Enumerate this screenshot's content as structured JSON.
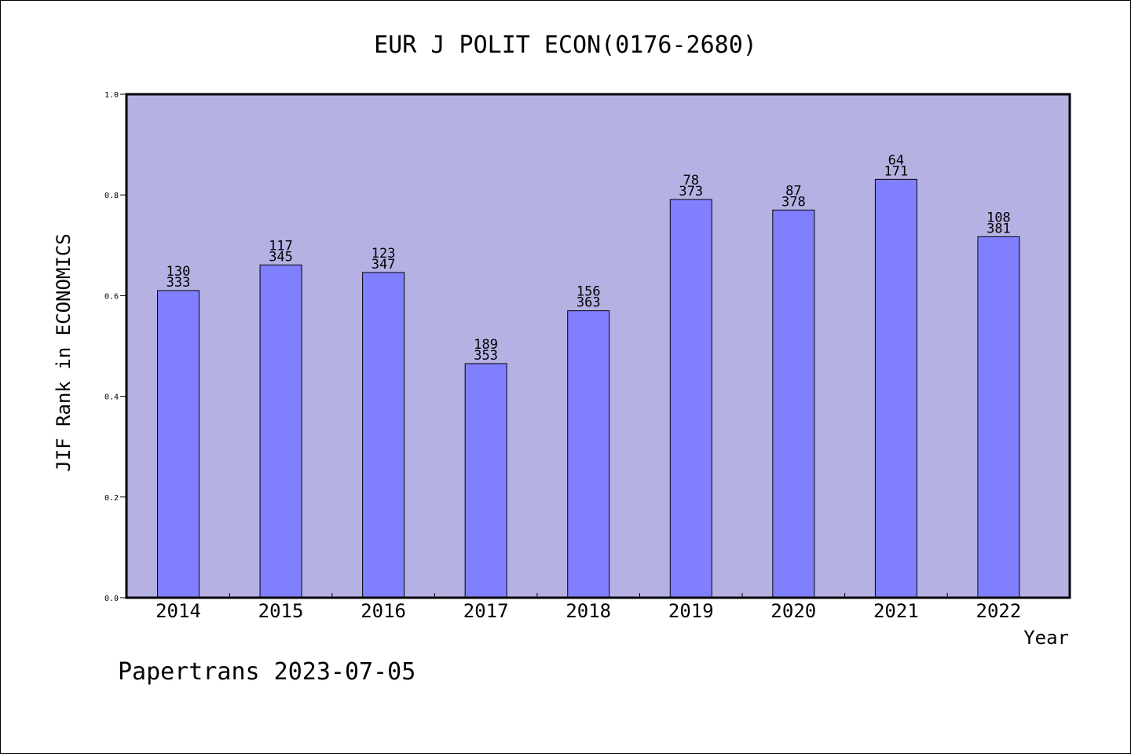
{
  "chart_data": {
    "type": "bar",
    "title": "EUR J POLIT ECON(0176-2680)",
    "ylabel": "JIF Rank in ECONOMICS",
    "xlabel": "Year",
    "categories": [
      "2014",
      "2015",
      "2016",
      "2017",
      "2018",
      "2019",
      "2020",
      "2021",
      "2022"
    ],
    "values": [
      0.61,
      0.661,
      0.646,
      0.465,
      0.57,
      0.791,
      0.77,
      0.831,
      0.717
    ],
    "data_labels": [
      [
        "130",
        "333"
      ],
      [
        "117",
        "345"
      ],
      [
        "123",
        "347"
      ],
      [
        "189",
        "353"
      ],
      [
        "156",
        "363"
      ],
      [
        "78",
        "373"
      ],
      [
        "87",
        "378"
      ],
      [
        "64",
        "171"
      ],
      [
        "108",
        "381"
      ]
    ],
    "ylim": [
      0.0,
      1.0
    ],
    "yticks": [
      "0.0",
      "0.2",
      "0.4",
      "0.6",
      "0.8",
      "1.0"
    ],
    "grid": false,
    "colors": {
      "plot_background": "#b6b1e3",
      "bar_fill": "#8080ff",
      "bar_stroke": "#000000"
    }
  },
  "footer": {
    "text": "Papertrans 2023-07-05"
  }
}
